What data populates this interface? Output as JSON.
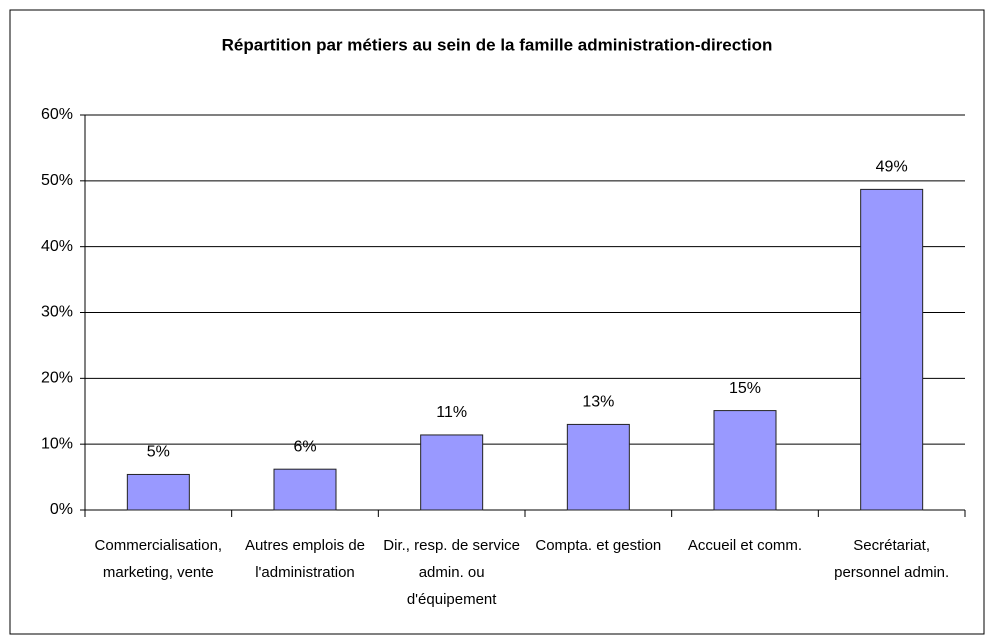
{
  "chart_data": {
    "type": "bar",
    "title": "Répartition par métiers au sein de la famille administration-direction",
    "categories": [
      "Commercialisation, marketing, vente",
      "Autres emplois de l'administration",
      "Dir., resp. de service admin. ou d'équipement",
      "Compta. et gestion",
      "Accueil et comm.",
      "Secrétariat, personnel admin."
    ],
    "values": [
      5.4,
      6.2,
      11.4,
      13.0,
      15.1,
      48.7
    ],
    "value_labels": [
      "5%",
      "6%",
      "11%",
      "13%",
      "15%",
      "49%"
    ],
    "color": "#9999ff",
    "ylim": [
      0,
      60
    ],
    "yticks": [
      {
        "value": 0,
        "label": "0%"
      },
      {
        "value": 10,
        "label": "10%"
      },
      {
        "value": 20,
        "label": "20%"
      },
      {
        "value": 30,
        "label": "30%"
      },
      {
        "value": 40,
        "label": "40%"
      },
      {
        "value": 50,
        "label": "50%"
      },
      {
        "value": 60,
        "label": "60%"
      }
    ],
    "grid": true
  }
}
